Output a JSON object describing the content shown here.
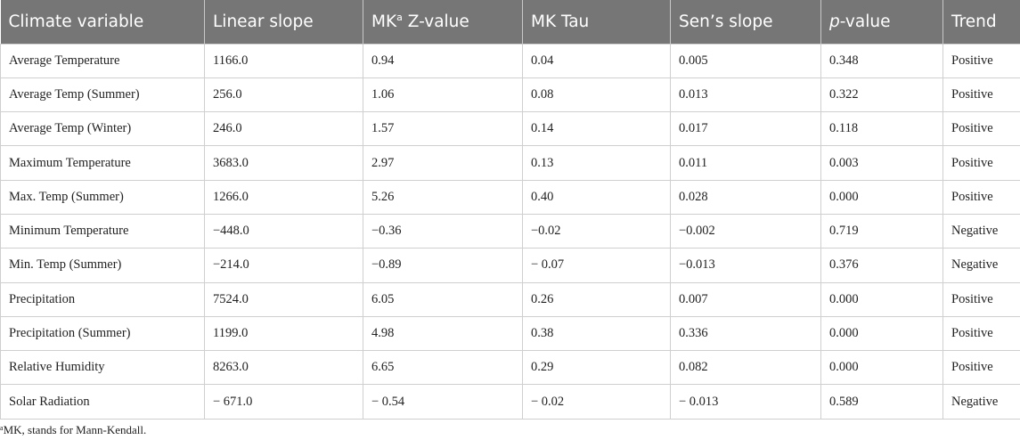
{
  "table": {
    "headers": [
      "Climate variable",
      "Linear slope",
      "MK",
      "Z-value",
      "MK Tau",
      "Sen’s slope",
      "p",
      "-value",
      "Trend"
    ],
    "header_sup": "a",
    "rows": [
      [
        "Average Temperature",
        "1166.0",
        "0.94",
        "0.04",
        "0.005",
        "0.348",
        "Positive"
      ],
      [
        "Average Temp (Summer)",
        "256.0",
        "1.06",
        "0.08",
        "0.013",
        "0.322",
        "Positive"
      ],
      [
        "Average Temp (Winter)",
        "246.0",
        "1.57",
        "0.14",
        "0.017",
        "0.118",
        "Positive"
      ],
      [
        "Maximum Temperature",
        "3683.0",
        "2.97",
        "0.13",
        "0.011",
        "0.003",
        "Positive"
      ],
      [
        "Max. Temp (Summer)",
        "1266.0",
        "5.26",
        "0.40",
        "0.028",
        "0.000",
        "Positive"
      ],
      [
        "Minimum Temperature",
        "−448.0",
        "−0.36",
        "−0.02",
        "−0.002",
        "0.719",
        "Negative"
      ],
      [
        "Min. Temp (Summer)",
        "−214.0",
        "−0.89",
        "− 0.07",
        "−0.013",
        "0.376",
        "Negative"
      ],
      [
        "Precipitation",
        "7524.0",
        "6.05",
        "0.26",
        "0.007",
        "0.000",
        "Positive"
      ],
      [
        "Precipitation (Summer)",
        "1199.0",
        "4.98",
        "0.38",
        "0.336",
        "0.000",
        "Positive"
      ],
      [
        "Relative Humidity",
        "8263.0",
        "6.65",
        "0.29",
        "0.082",
        "0.000",
        "Positive"
      ],
      [
        "Solar Radiation",
        "− 671.0",
        "− 0.54",
        "− 0.02",
        "− 0.013",
        "0.589",
        "Negative"
      ]
    ]
  },
  "footnote": {
    "sup": "a",
    "text": "MK, stands for Mann-Kendall."
  }
}
